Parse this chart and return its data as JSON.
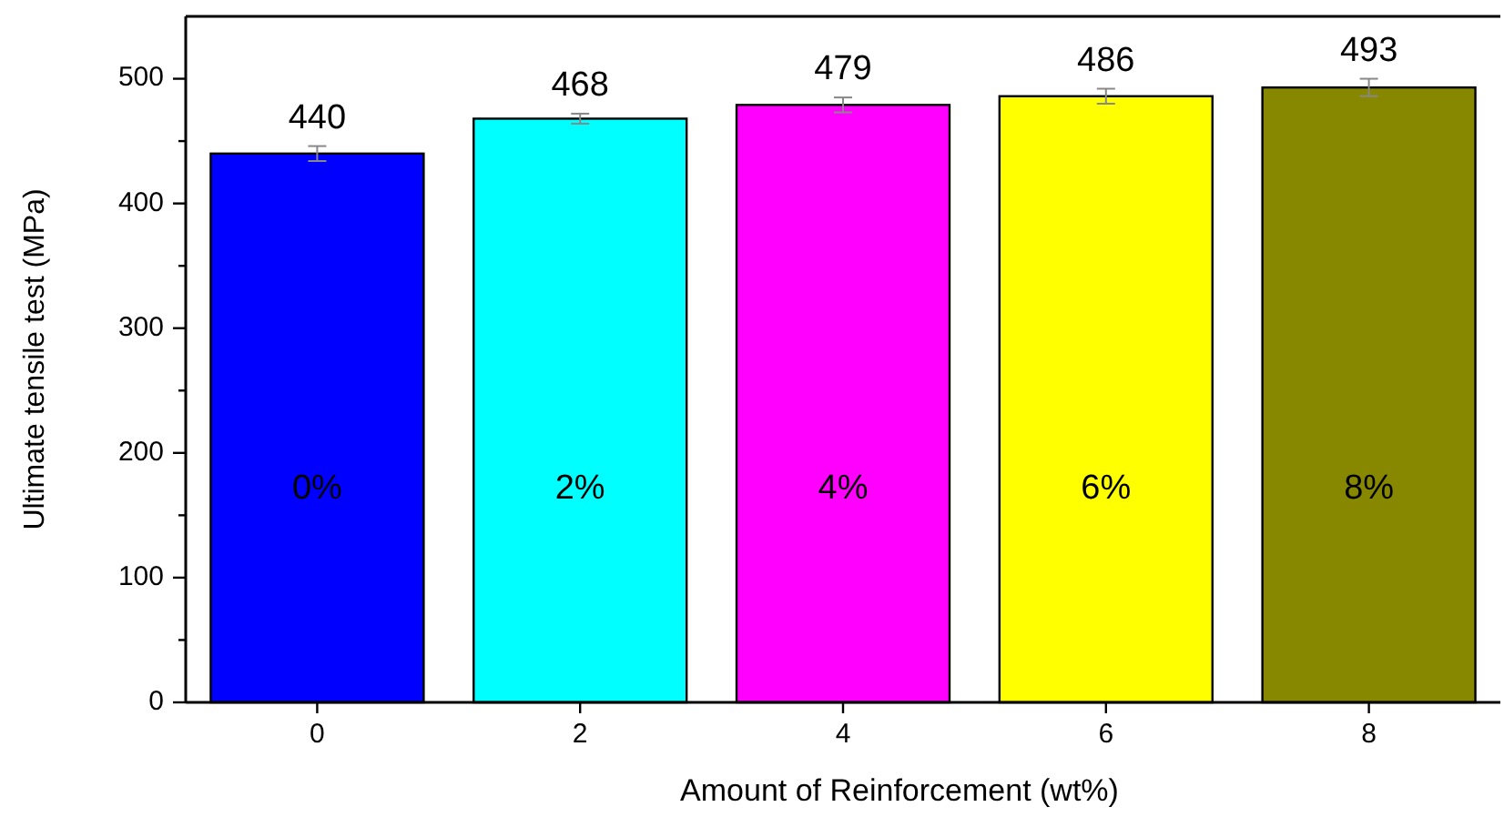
{
  "chart_data": {
    "type": "bar",
    "xlabel": "Amount of Reinforcement (wt%)",
    "ylabel": "Ultimate tensile test (MPa)",
    "categories": [
      "0",
      "2",
      "4",
      "6",
      "8"
    ],
    "values": [
      440,
      468,
      479,
      486,
      493
    ],
    "colors": [
      "#0000ff",
      "#00ffff",
      "#ff00ff",
      "#ffff00",
      "#878700"
    ],
    "errors": [
      6,
      4,
      6,
      6,
      7
    ],
    "data_labels": true,
    "ylim": [
      0,
      550
    ],
    "yticks": [
      0,
      {
        "value": 50,
        "label": null
      },
      100,
      {
        "value": 150,
        "label": null
      },
      200,
      {
        "value": 250,
        "label": null
      },
      300,
      {
        "value": 350,
        "label": null
      },
      400,
      {
        "value": 450,
        "label": null
      },
      500
    ],
    "annotations": [
      "0%",
      "2%",
      "4%",
      "6%",
      "8%"
    ],
    "grid": false
  }
}
